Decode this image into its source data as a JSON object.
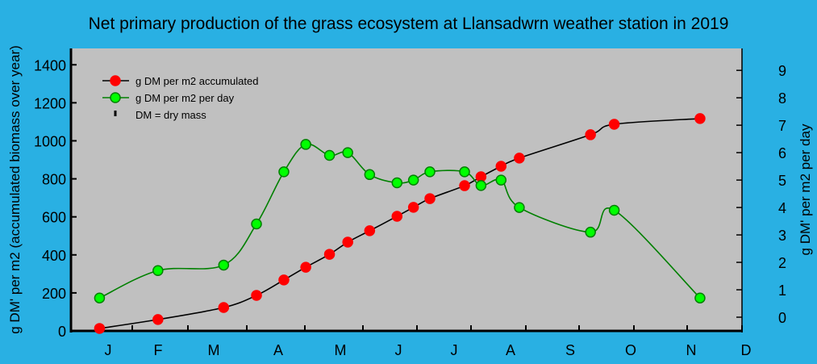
{
  "chart_data": {
    "type": "line",
    "title": "Net primary production of the grass ecosystem at Llansadwrn weather station in 2019",
    "ylabel": "g DM' per m2 (accumulated biomass over year)",
    "y2label": "g DM' per m2 per day",
    "xlabel": "",
    "x_tick_labels": [
      "J",
      "F",
      "M",
      "A",
      "M",
      "J",
      "J",
      "A",
      "S",
      "O",
      "N",
      "D"
    ],
    "y_ticks": [
      0,
      200,
      400,
      600,
      800,
      1000,
      1200,
      1400
    ],
    "y2_ticks": [
      0,
      1,
      2,
      3,
      4,
      5,
      6,
      7,
      8,
      9
    ],
    "ylim": [
      0,
      1486
    ],
    "y2lim": [
      -0.5,
      9.8
    ],
    "grid": false,
    "legend_placement": "top-left",
    "legend_note": "DM = dry mass",
    "series": [
      {
        "name": "g DM per m2 accumulated",
        "axis": "left",
        "color": "#ff0000",
        "line_color": "#000000",
        "x": [
          "2019-01-14",
          "2019-02-15",
          "2019-03-23",
          "2019-04-10",
          "2019-04-25",
          "2019-05-07",
          "2019-05-20",
          "2019-05-30",
          "2019-06-11",
          "2019-06-26",
          "2019-07-05",
          "2019-07-14",
          "2019-08-02",
          "2019-08-11",
          "2019-08-22",
          "2019-09-01",
          "2019-10-10",
          "2019-10-23",
          "2019-12-09"
        ],
        "values": [
          13,
          60,
          123,
          187,
          268,
          335,
          403,
          467,
          527,
          603,
          650,
          696,
          764,
          811,
          866,
          909,
          1032,
          1087,
          1117
        ]
      },
      {
        "name": "g DM per m2 per day",
        "axis": "right",
        "color": "#00ff00",
        "line_color": "#008000",
        "x": [
          "2019-01-14",
          "2019-02-15",
          "2019-03-23",
          "2019-04-10",
          "2019-04-25",
          "2019-05-07",
          "2019-05-20",
          "2019-05-30",
          "2019-06-11",
          "2019-06-26",
          "2019-07-05",
          "2019-07-14",
          "2019-08-02",
          "2019-08-11",
          "2019-08-22",
          "2019-09-01",
          "2019-10-10",
          "2019-10-23",
          "2019-12-09"
        ],
        "values": [
          0.7,
          1.7,
          1.9,
          3.4,
          5.3,
          6.3,
          5.9,
          6.0,
          5.2,
          4.9,
          5.0,
          5.3,
          5.3,
          4.8,
          5.0,
          4.0,
          3.1,
          3.9,
          0.7
        ]
      }
    ]
  },
  "colors": {
    "background": "#29b0e3",
    "plot_area": "#c0c0c0"
  }
}
